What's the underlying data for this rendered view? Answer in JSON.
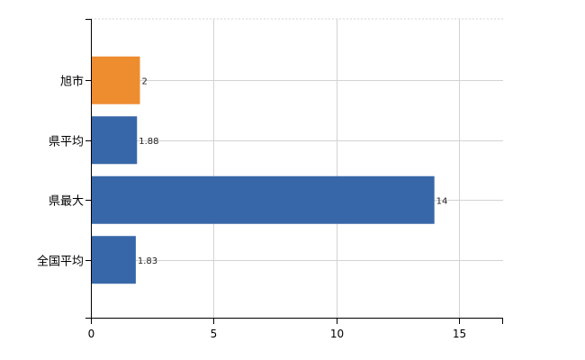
{
  "chart_data": {
    "type": "bar",
    "orientation": "horizontal",
    "categories": [
      "旭市",
      "県平均",
      "県最大",
      "全国平均"
    ],
    "values": [
      2,
      1.88,
      14,
      1.83
    ],
    "data_labels": [
      "2",
      "1.88",
      "14",
      "1.83"
    ],
    "bar_colors": [
      "#ee8c30",
      "#3767a8",
      "#3767a8",
      "#3767a8"
    ],
    "xlim": [
      0,
      16.8
    ],
    "xticks": [
      0,
      5,
      10,
      15
    ],
    "xtick_labels": [
      "0",
      "5",
      "10",
      "15"
    ],
    "title": "",
    "xlabel": "",
    "ylabel": "",
    "grid": true,
    "legend": "none"
  },
  "colors": {
    "highlight": "#ee8c30",
    "default_bar": "#3767a8",
    "grid": "#d3d3d3",
    "axis": "#000000"
  }
}
